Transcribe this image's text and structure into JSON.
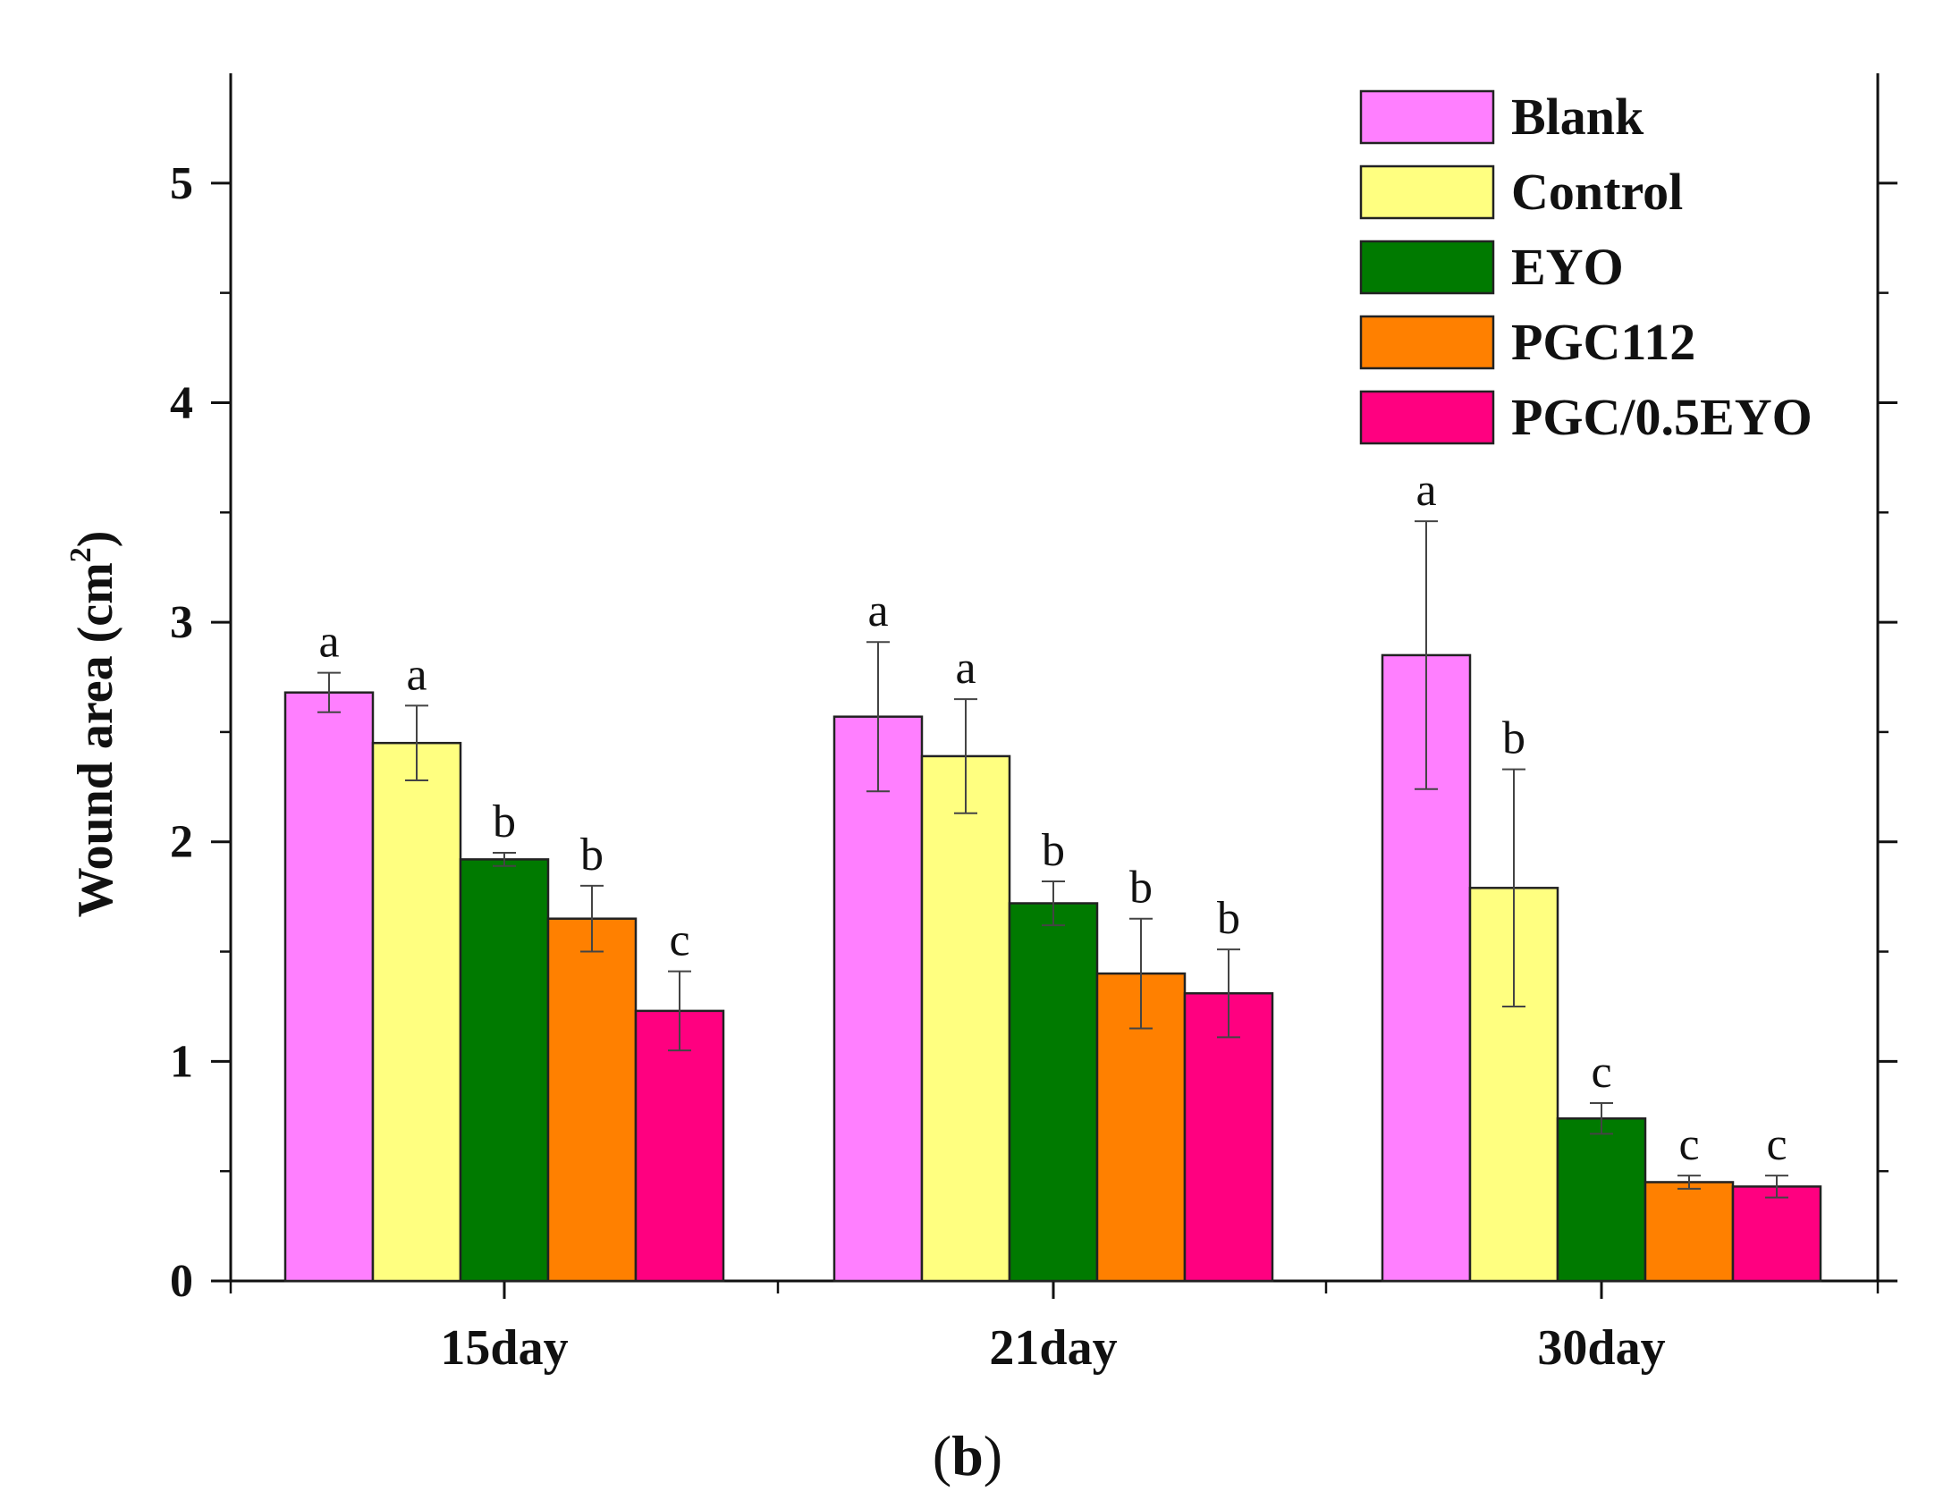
{
  "chart_data": {
    "type": "bar",
    "title": "",
    "xlabel": "",
    "ylabel": "Wound area (cm",
    "ylabel_superscript": "2",
    "ylabel_suffix": ")",
    "ylim": [
      0,
      5.5
    ],
    "yticks": [
      0,
      1,
      2,
      3,
      4,
      5
    ],
    "ytick_labels": [
      "0",
      "1",
      "2",
      "3",
      "4",
      "5"
    ],
    "grid": false,
    "legend_position": "top-right",
    "categories": [
      "15day",
      "21day",
      "30day"
    ],
    "series": [
      {
        "name": "Blank",
        "color": "#ff7fff",
        "values": [
          2.68,
          2.57,
          2.85
        ],
        "errors": [
          0.09,
          0.34,
          0.61
        ],
        "letters": [
          "a",
          "a",
          "a"
        ]
      },
      {
        "name": "Control",
        "color": "#ffff80",
        "values": [
          2.45,
          2.39,
          1.79
        ],
        "errors": [
          0.17,
          0.26,
          0.54
        ],
        "letters": [
          "a",
          "a",
          "b"
        ]
      },
      {
        "name": "EYO",
        "color": "#007a00",
        "values": [
          1.92,
          1.72,
          0.74
        ],
        "errors": [
          0.03,
          0.1,
          0.07
        ],
        "letters": [
          "b",
          "b",
          "c"
        ]
      },
      {
        "name": "PGC112",
        "color": "#ff8000",
        "values": [
          1.65,
          1.4,
          0.45
        ],
        "errors": [
          0.15,
          0.25,
          0.03
        ],
        "letters": [
          "b",
          "b",
          "c"
        ]
      },
      {
        "name": "PGC/0.5EYO",
        "color": "#ff0080",
        "values": [
          1.23,
          1.31,
          0.43
        ],
        "errors": [
          0.18,
          0.2,
          0.05
        ],
        "letters": [
          "c",
          "b",
          "c"
        ]
      }
    ]
  },
  "caption": {
    "open": "(",
    "letter": "b",
    "close": ")"
  }
}
